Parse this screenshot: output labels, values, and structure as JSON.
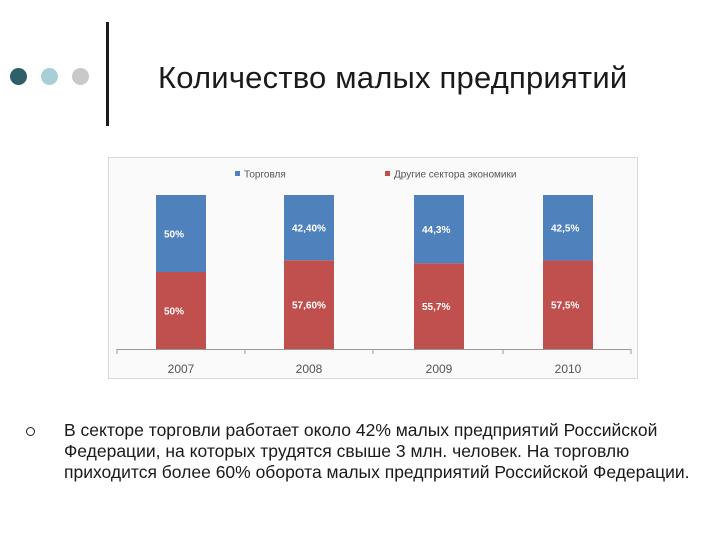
{
  "slide": {
    "title": "Количество малых предприятий",
    "bullet_text": "В секторе торговли работает около 42% малых предприятий Российской Федерации, на которых трудятся свыше 3 млн. человек. На торговлю приходится более 60% оборота малых предприятий Российской Федерации."
  },
  "decor": {
    "dot_colors": [
      "#2f5f68",
      "#a9cfd6",
      "#c9c9c9"
    ]
  },
  "chart_data": {
    "type": "bar",
    "stacked": true,
    "categories": [
      "2007",
      "2008",
      "2009",
      "2010"
    ],
    "series": [
      {
        "name": "Торговля",
        "color": "#4f81bd",
        "values": [
          50,
          42.4,
          44.3,
          42.5
        ],
        "labels": [
          "50%",
          "42,40%",
          "44,3%",
          "42,5%"
        ]
      },
      {
        "name": "Другие сектора экономики",
        "color": "#c0504d",
        "values": [
          50,
          57.6,
          55.7,
          57.5
        ],
        "labels": [
          "50%",
          "57,60%",
          "55,7%",
          "57,5%"
        ]
      }
    ],
    "ylim": [
      0,
      100
    ],
    "legend": "top",
    "grid": false
  }
}
